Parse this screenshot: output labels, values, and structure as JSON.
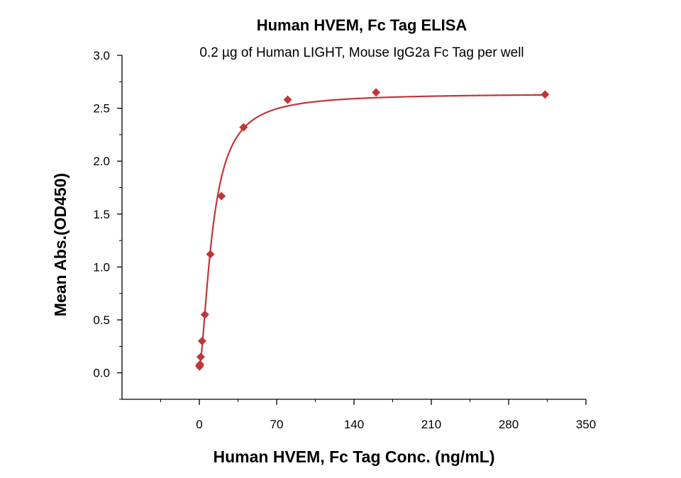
{
  "chart_data": {
    "type": "scatter",
    "title": "Human HVEM, Fc Tag ELISA",
    "subtitle": "0.2 µg of Human LIGHT, Mouse IgG2a Fc Tag per well",
    "xlabel": "Human HVEM, Fc Tag Conc. (ng/mL)",
    "ylabel": "Mean Abs.(OD450)",
    "xlim": [
      -70,
      350
    ],
    "ylim": [
      -0.25,
      3.0
    ],
    "xticks": [
      0,
      70,
      140,
      210,
      280,
      350
    ],
    "yticks": [
      0.0,
      0.5,
      1.0,
      1.5,
      2.0,
      2.5,
      3.0
    ],
    "xtick_labels": [
      "0",
      "70",
      "140",
      "210",
      "280",
      "350"
    ],
    "ytick_labels": [
      "0.0",
      "0.5",
      "1.0",
      "1.5",
      "2.0",
      "2.5",
      "3.0"
    ],
    "grid": false,
    "legend": "none",
    "color": "#c0363a",
    "marker": "diamond",
    "fit_curve": true,
    "series": [
      {
        "x": [
          0.156,
          0.313,
          0.625,
          1.25,
          2.5,
          5,
          10,
          20,
          40,
          80,
          160,
          313
        ],
        "y": [
          0.06,
          0.07,
          0.08,
          0.15,
          0.3,
          0.55,
          1.12,
          1.67,
          2.32,
          2.58,
          2.65,
          2.63
        ]
      }
    ]
  }
}
